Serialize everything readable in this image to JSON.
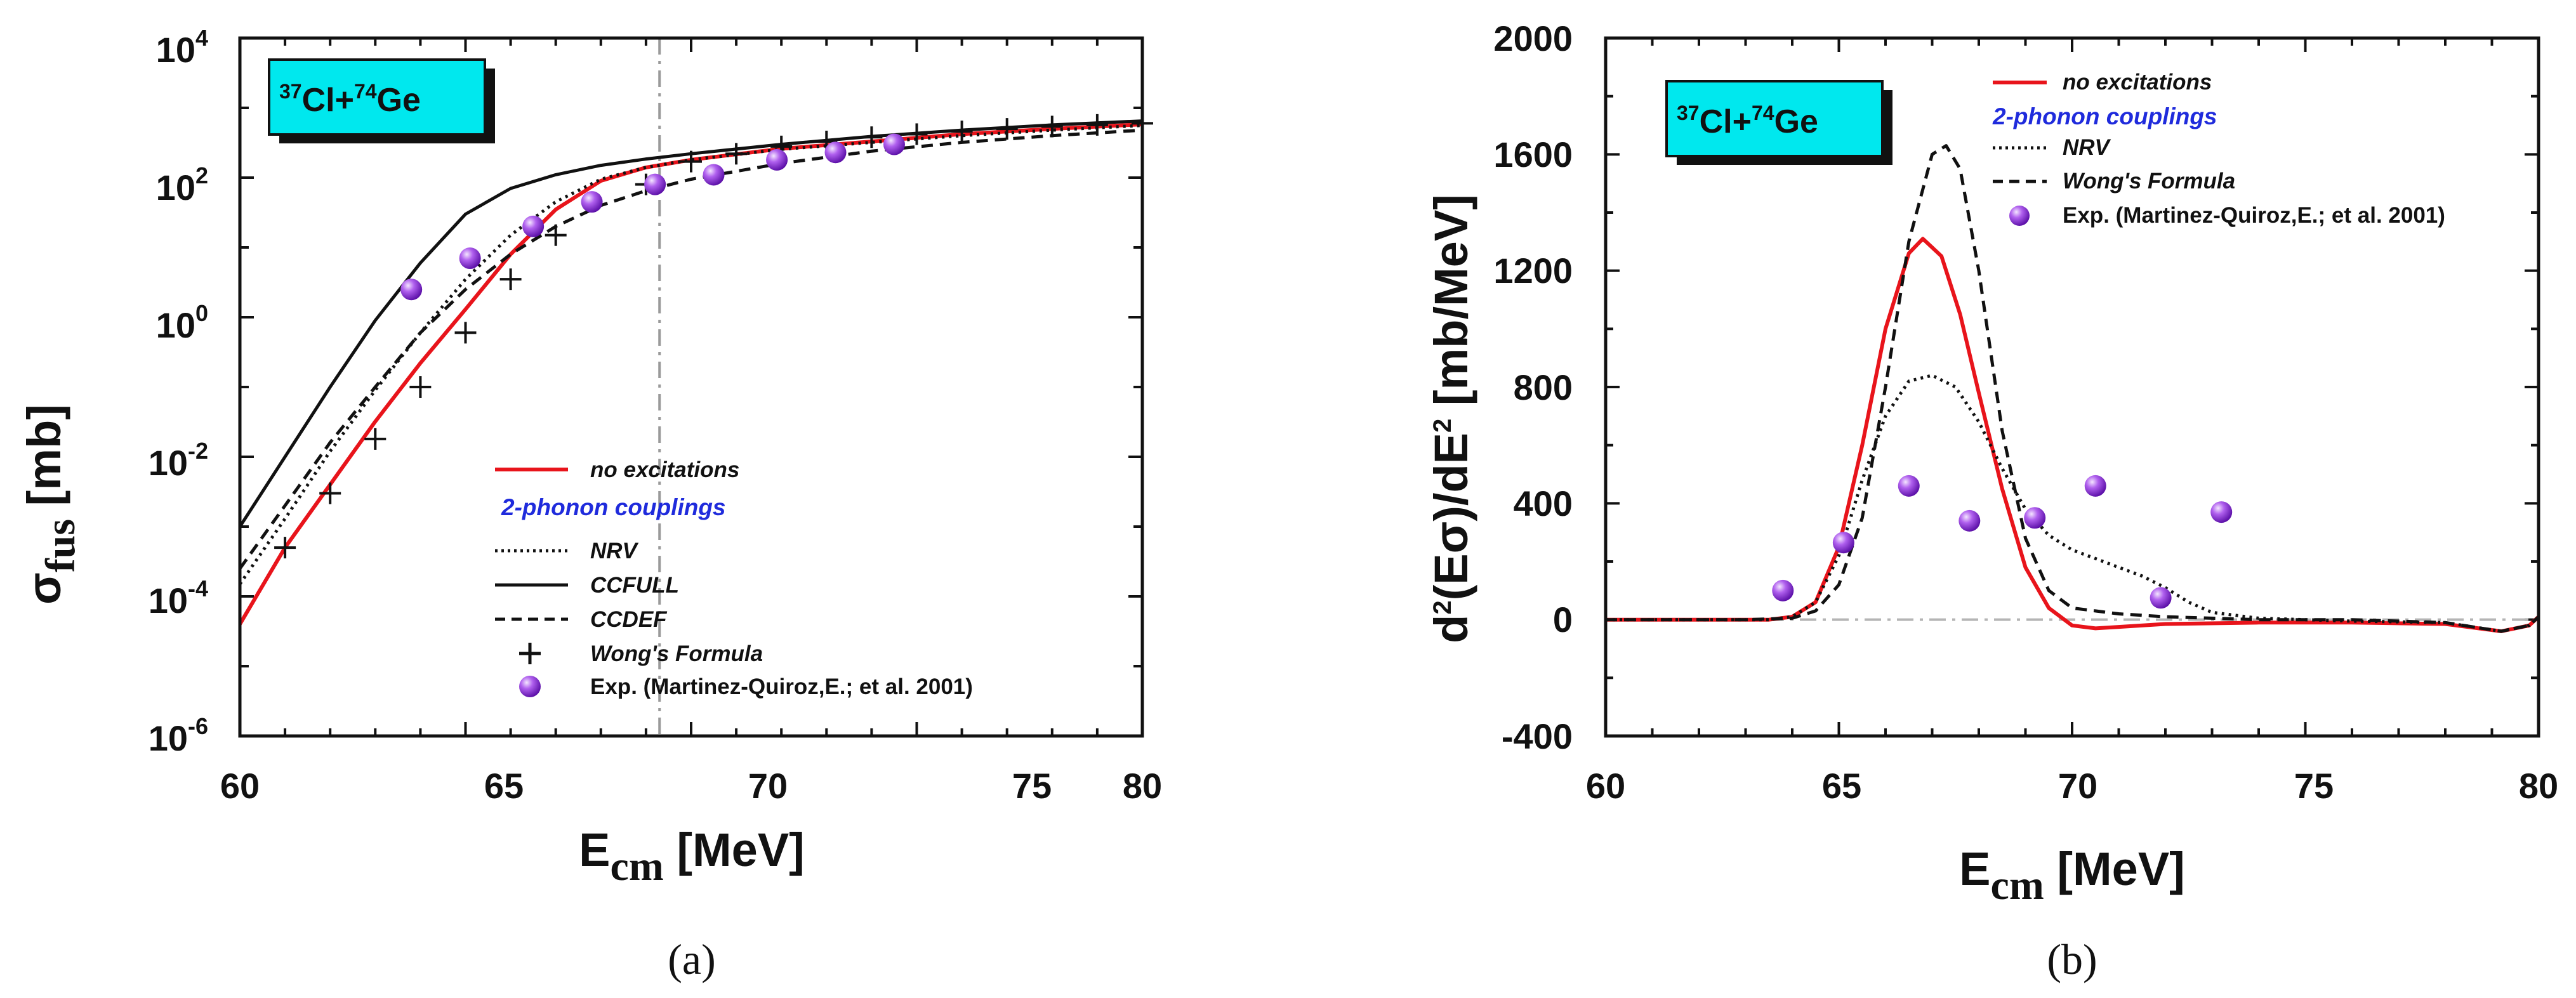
{
  "chart_data": [
    {
      "type": "line",
      "panel_label": "(a)",
      "title": "",
      "reaction": {
        "a_mass": "37",
        "a_sym": "Cl",
        "joiner": "+",
        "b_mass": "74",
        "b_sym": "Ge"
      },
      "xlabel": {
        "main": "E",
        "sub": "cm",
        "unit": " [MeV]"
      },
      "ylabel": {
        "main": "σ",
        "sub": "fus",
        "unit": " [mb]"
      },
      "xlim": [
        60,
        80
      ],
      "ylim_log10": [
        -6,
        4
      ],
      "xticks": [
        "60",
        "65",
        "70",
        "75",
        "80"
      ],
      "yticks": [
        {
          "base": "10",
          "exp": "-6"
        },
        {
          "base": "10",
          "exp": "-4"
        },
        {
          "base": "10",
          "exp": "-2"
        },
        {
          "base": "10",
          "exp": "0"
        },
        {
          "base": "10",
          "exp": "2"
        },
        {
          "base": "10",
          "exp": "4"
        }
      ],
      "vline_x": 69.3,
      "legend_heading": "2-phonon couplings",
      "series": [
        {
          "name": "no excitations",
          "style": "solid",
          "color": "#e8141b",
          "x": [
            60,
            61,
            62,
            63,
            64,
            65,
            66,
            67,
            68,
            69,
            70,
            72,
            74,
            76,
            78,
            80
          ],
          "y": [
            4e-05,
            0.0005,
            0.004,
            0.032,
            0.22,
            1.3,
            8,
            35,
            90,
            140,
            180,
            260,
            330,
            420,
            500,
            580
          ]
        },
        {
          "name": "NRV",
          "style": "dotted",
          "color": "#111111",
          "x": [
            60,
            61,
            62,
            63,
            64,
            65,
            66,
            67,
            68,
            69,
            70,
            72,
            74,
            76,
            78,
            80
          ],
          "y": [
            0.00015,
            0.0013,
            0.012,
            0.09,
            0.6,
            3.5,
            15,
            45,
            95,
            140,
            180,
            255,
            320,
            400,
            480,
            560
          ]
        },
        {
          "name": "CCFULL",
          "style": "solid",
          "color": "#111111",
          "x": [
            60,
            61,
            62,
            63,
            64,
            65,
            66,
            67,
            68,
            69,
            70,
            72,
            74,
            76,
            78,
            80
          ],
          "y": [
            0.001,
            0.01,
            0.1,
            0.9,
            6,
            30,
            70,
            110,
            150,
            185,
            220,
            300,
            390,
            480,
            570,
            650
          ]
        },
        {
          "name": "CCDEF",
          "style": "dashed",
          "color": "#111111",
          "x": [
            60,
            61,
            62,
            63,
            64,
            65,
            66,
            67,
            68,
            69,
            70,
            72,
            74,
            76,
            78,
            80
          ],
          "y": [
            0.00025,
            0.002,
            0.016,
            0.1,
            0.6,
            2.5,
            8,
            20,
            40,
            65,
            95,
            160,
            240,
            320,
            400,
            480
          ]
        }
      ],
      "markers": [
        {
          "name": "Wong's Formula",
          "marker": "plus",
          "x": [
            61,
            62,
            63,
            64,
            65,
            66,
            67,
            69,
            70,
            71,
            72,
            73,
            74,
            75,
            76,
            77,
            78,
            79,
            80
          ],
          "y": [
            0.0005,
            0.003,
            0.018,
            0.1,
            0.6,
            3.5,
            15,
            80,
            170,
            220,
            280,
            330,
            380,
            420,
            460,
            500,
            540,
            570,
            600
          ]
        },
        {
          "name": "Exp. (Martinez-Quiroz,E.; et al. 2001)",
          "marker": "sphere",
          "x": [
            63.8,
            65.1,
            66.5,
            67.8,
            69.2,
            70.5,
            71.9,
            73.2,
            74.5
          ],
          "y": [
            2.5,
            7,
            20,
            45,
            80,
            110,
            180,
            230,
            300
          ]
        }
      ]
    },
    {
      "type": "line",
      "panel_label": "(b)",
      "title": "",
      "reaction": {
        "a_mass": "37",
        "a_sym": "Cl",
        "joiner": "+",
        "b_mass": "74",
        "b_sym": "Ge"
      },
      "xlabel": {
        "main": "E",
        "sub": "cm",
        "unit": " [MeV]"
      },
      "ylabel": {
        "main": "d",
        "sup1": "2",
        "mid": "(Eσ)/dE",
        "sup2": "2",
        "unit": " [mb/MeV]"
      },
      "xlim": [
        60,
        80
      ],
      "ylim": [
        -400,
        2000
      ],
      "xticks": [
        "60",
        "65",
        "70",
        "75",
        "80"
      ],
      "yticks": [
        "-400",
        "0",
        "400",
        "800",
        "1200",
        "1600",
        "2000"
      ],
      "hline_y": 0,
      "legend_heading": "2-phonon couplings",
      "series": [
        {
          "name": "no excitations",
          "style": "solid",
          "color": "#e8141b",
          "x": [
            60,
            62,
            63.5,
            64,
            64.5,
            65,
            65.5,
            66,
            66.5,
            66.8,
            67.2,
            67.6,
            68,
            68.5,
            69,
            69.5,
            70,
            70.5,
            71,
            72,
            74,
            76,
            78,
            79.2,
            79.8,
            80
          ],
          "y": [
            0,
            0,
            0,
            10,
            60,
            250,
            600,
            1000,
            1260,
            1310,
            1250,
            1050,
            780,
            450,
            180,
            40,
            -20,
            -30,
            -25,
            -15,
            -10,
            -10,
            -15,
            -40,
            -20,
            10
          ]
        },
        {
          "name": "NRV",
          "style": "dotted",
          "color": "#111111",
          "x": [
            60,
            62,
            63.5,
            64,
            64.5,
            65,
            65.5,
            66,
            66.5,
            67,
            67.5,
            68,
            68.5,
            69,
            69.5,
            70,
            70.5,
            71,
            71.5,
            72,
            72.5,
            73,
            74,
            76,
            78,
            79.2,
            79.8,
            80
          ],
          "y": [
            0,
            0,
            0,
            10,
            60,
            220,
            480,
            700,
            820,
            840,
            800,
            680,
            520,
            380,
            290,
            240,
            210,
            180,
            150,
            110,
            60,
            25,
            5,
            -5,
            -10,
            -40,
            -20,
            10
          ]
        },
        {
          "name": "Wong's Formula",
          "style": "dashed",
          "color": "#111111",
          "x": [
            60,
            63,
            64,
            64.5,
            65,
            65.5,
            66,
            66.5,
            67,
            67.3,
            67.6,
            68,
            68.5,
            69,
            69.5,
            70,
            71,
            72,
            74,
            76,
            78,
            79.2,
            79.8,
            80
          ],
          "y": [
            0,
            0,
            5,
            30,
            120,
            350,
            800,
            1300,
            1600,
            1630,
            1550,
            1200,
            650,
            280,
            100,
            40,
            20,
            10,
            0,
            0,
            -10,
            -40,
            -20,
            10
          ]
        }
      ],
      "markers": [
        {
          "name": "Exp. (Martinez-Quiroz,E.; et al. 2001)",
          "marker": "sphere",
          "x": [
            63.8,
            65.1,
            66.5,
            67.8,
            69.2,
            70.5,
            71.9,
            73.2
          ],
          "y": [
            100,
            265,
            460,
            340,
            350,
            460,
            75,
            370
          ]
        }
      ]
    }
  ]
}
